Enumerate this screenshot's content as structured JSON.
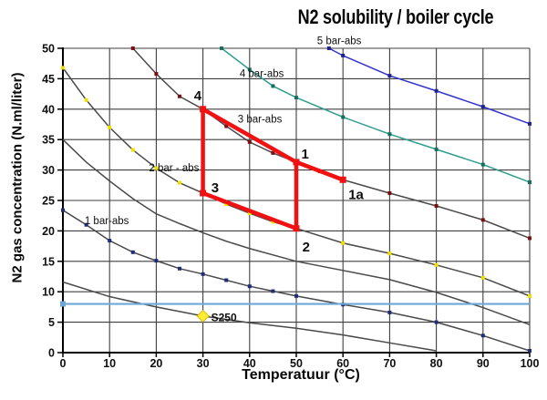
{
  "title": "N2 solubility / boiler cycle",
  "axes": {
    "x_label": "Temperatuur (°C)",
    "y_label": "N2 gas concentration (N.ml/liter)",
    "x_ticks": [
      0,
      10,
      20,
      30,
      40,
      50,
      60,
      70,
      80,
      90,
      100
    ],
    "y_ticks": [
      0,
      5,
      10,
      15,
      20,
      25,
      30,
      35,
      40,
      45,
      50
    ]
  },
  "chart_data": {
    "type": "line",
    "title": "N2 solubility / boiler cycle",
    "xlabel": "Temperatuur (°C)",
    "ylabel": "N2 gas concentration (N.ml/liter)",
    "xlim": [
      0,
      100
    ],
    "ylim": [
      0,
      50
    ],
    "grid": true,
    "legend_position": "none (labels written along curves)",
    "colors": {
      "grid": "#3f3f3f",
      "axis": "#000000",
      "text": "#111111",
      "curve_gray": "#4a4a4a"
    },
    "series": [
      {
        "name": "unlabeled-lower-curve",
        "color": "#4a4a4a",
        "marker_color": null,
        "points": [
          [
            0,
            11.6
          ],
          [
            10,
            9.2
          ],
          [
            20,
            7.5
          ],
          [
            30,
            6.0
          ],
          [
            40,
            4.9
          ],
          [
            50,
            4.0
          ],
          [
            60,
            2.9
          ],
          [
            70,
            1.6
          ],
          [
            80,
            0.3
          ]
        ]
      },
      {
        "name": "1 bar-abs",
        "label": "1 bar-abs",
        "label_at": [
          9.4,
          21.7
        ],
        "color": "#4a4a4a",
        "marker_color": "#1f2d7a",
        "points": [
          [
            0,
            23.4
          ],
          [
            5,
            21.0
          ],
          [
            10,
            18.4
          ],
          [
            15,
            16.5
          ],
          [
            20,
            15.1
          ],
          [
            25,
            13.8
          ],
          [
            30,
            12.9
          ],
          [
            35,
            11.9
          ],
          [
            40,
            10.9
          ],
          [
            45,
            10.1
          ],
          [
            50,
            9.3
          ],
          [
            60,
            7.9
          ],
          [
            70,
            6.6
          ],
          [
            80,
            5.0
          ],
          [
            90,
            2.8
          ],
          [
            100,
            0.3
          ]
        ]
      },
      {
        "name": "unlabeled-middle-curve",
        "color": "#4a4a4a",
        "marker_color": null,
        "points": [
          [
            0,
            35.0
          ],
          [
            5,
            31.3
          ],
          [
            10,
            28.2
          ],
          [
            15,
            25.3
          ],
          [
            20,
            22.8
          ],
          [
            25,
            21.2
          ],
          [
            30,
            19.7
          ],
          [
            35,
            18.3
          ],
          [
            40,
            17.1
          ],
          [
            50,
            15.0
          ],
          [
            60,
            13.5
          ],
          [
            70,
            12.0
          ],
          [
            80,
            9.9
          ],
          [
            90,
            7.4
          ],
          [
            100,
            4.6
          ]
        ]
      },
      {
        "name": "2 bar - abs",
        "label": "2 bar - abs",
        "label_at": [
          23.8,
          30.4
        ],
        "color": "#4a4a4a",
        "marker_color": "#f0e000",
        "points": [
          [
            0,
            46.8
          ],
          [
            5,
            41.5
          ],
          [
            10,
            37.0
          ],
          [
            15,
            33.3
          ],
          [
            20,
            30.3
          ],
          [
            25,
            27.9
          ],
          [
            30,
            26.2
          ],
          [
            35,
            24.4
          ],
          [
            40,
            22.9
          ],
          [
            45,
            21.5
          ],
          [
            50,
            20.4
          ],
          [
            60,
            18.0
          ],
          [
            70,
            16.3
          ],
          [
            80,
            14.4
          ],
          [
            90,
            12.3
          ],
          [
            100,
            9.3
          ]
        ]
      },
      {
        "name": "3 bar-abs",
        "label": "3 bar-abs",
        "label_at": [
          42.2,
          38.4
        ],
        "color": "#4a4a4a",
        "marker_color": "#7b1010",
        "points": [
          [
            15,
            50.0
          ],
          [
            20,
            45.8
          ],
          [
            25,
            42.1
          ],
          [
            30,
            40.0
          ],
          [
            35,
            37.2
          ],
          [
            40,
            34.6
          ],
          [
            45,
            32.8
          ],
          [
            50,
            31.3
          ],
          [
            55,
            29.8
          ],
          [
            60,
            28.4
          ],
          [
            70,
            26.2
          ],
          [
            80,
            24.1
          ],
          [
            90,
            21.8
          ],
          [
            100,
            18.8
          ]
        ]
      },
      {
        "name": "4 bar-abs",
        "label": "4 bar-abs",
        "label_at": [
          42.6,
          45.9
        ],
        "color": "#2e9d8d",
        "marker_color": "#156e60",
        "points": [
          [
            34,
            50.0
          ],
          [
            40,
            46.5
          ],
          [
            45,
            43.8
          ],
          [
            50,
            41.9
          ],
          [
            60,
            38.7
          ],
          [
            70,
            35.9
          ],
          [
            80,
            33.4
          ],
          [
            90,
            30.9
          ],
          [
            100,
            28.0
          ]
        ]
      },
      {
        "name": "5 bar-abs",
        "label": "5 bar-abs",
        "label_at": [
          59.2,
          51.3
        ],
        "color": "#3333cc",
        "marker_color": "#22228f",
        "points": [
          [
            57,
            50.0
          ],
          [
            60,
            48.8
          ],
          [
            70,
            45.5
          ],
          [
            80,
            43.0
          ],
          [
            90,
            40.4
          ],
          [
            100,
            37.6
          ]
        ]
      }
    ],
    "reference_line": {
      "y": 8,
      "color": "#6fa8d6",
      "x_start": 0,
      "x_end": 100
    },
    "cycle": {
      "color": "#f01212",
      "vertices": [
        {
          "id": "4",
          "x": 30,
          "y": 40.0,
          "label_at": [
            28.9,
            42.2
          ]
        },
        {
          "id": "1",
          "x": 50,
          "y": 31.3,
          "label_at": [
            51.9,
            32.6
          ]
        },
        {
          "id": "1a",
          "x": 60,
          "y": 28.4,
          "label_at": [
            62.8,
            26.0
          ]
        },
        {
          "id": "3",
          "x": 30,
          "y": 26.2,
          "label_at": [
            32.6,
            27.1
          ]
        },
        {
          "id": "2",
          "x": 50,
          "y": 20.4,
          "label_at": [
            52.1,
            17.4
          ]
        }
      ],
      "edges": [
        [
          "4",
          "1"
        ],
        [
          "1",
          "1a"
        ],
        [
          "4",
          "3"
        ],
        [
          "3",
          "2"
        ],
        [
          "2",
          "1"
        ]
      ]
    },
    "s250_point": {
      "label": "S250",
      "x": 30,
      "y": 6.0,
      "marker_color": "#ffee33",
      "marker_border": "#e0b800",
      "label_at": [
        34.5,
        5.8
      ]
    }
  }
}
